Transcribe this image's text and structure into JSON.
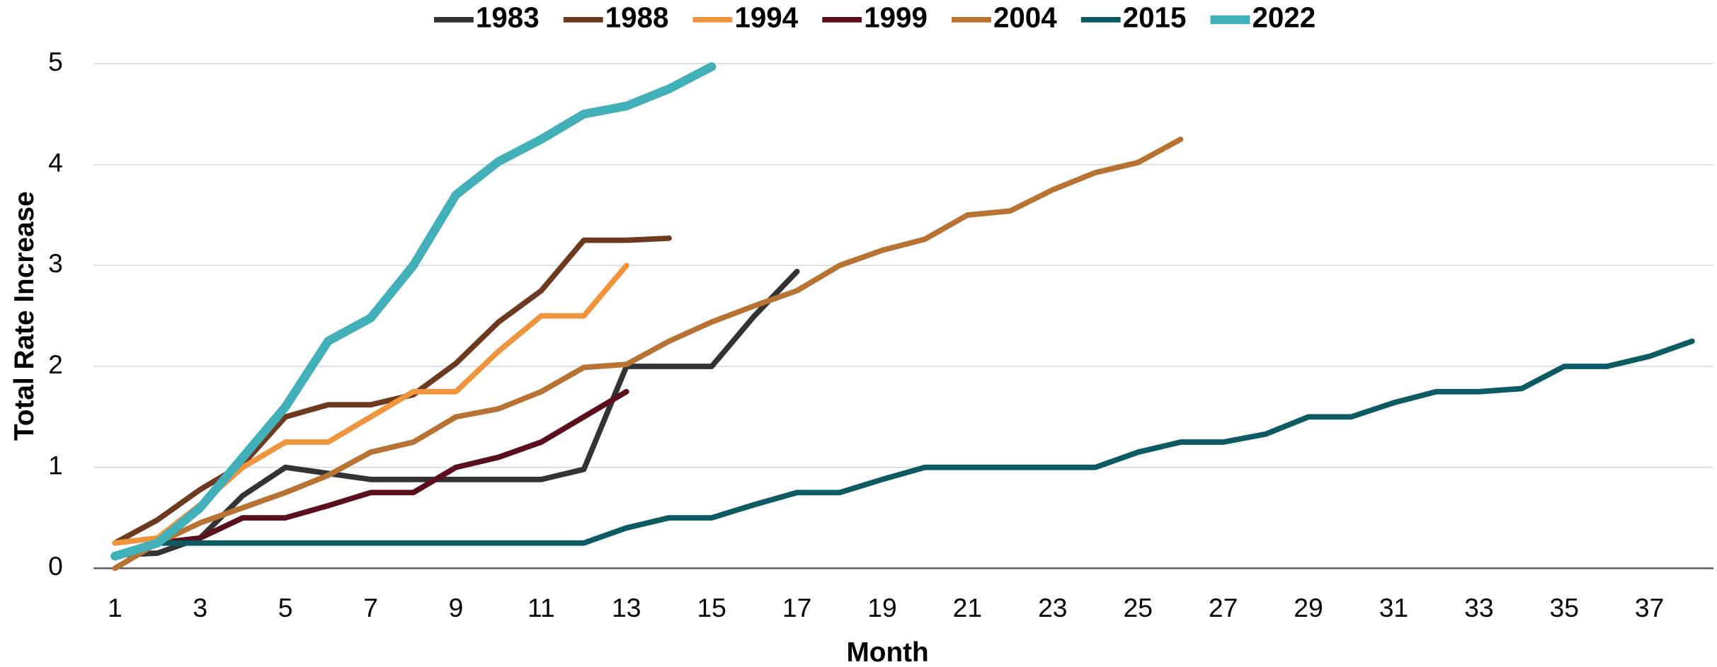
{
  "chart_data": {
    "type": "line",
    "x_label": "Month",
    "y_label": "Total Rate Increase",
    "x": [
      1,
      2,
      3,
      4,
      5,
      6,
      7,
      8,
      9,
      10,
      11,
      12,
      13,
      14,
      15,
      16,
      17,
      18,
      19,
      20,
      21,
      22,
      23,
      24,
      25,
      26,
      27,
      28,
      29,
      30,
      31,
      32,
      33,
      34,
      35,
      36,
      37,
      38
    ],
    "xlim": [
      0.5,
      38.5
    ],
    "xticks": [
      1,
      3,
      5,
      7,
      9,
      11,
      13,
      15,
      17,
      19,
      21,
      23,
      25,
      27,
      29,
      31,
      33,
      35,
      37
    ],
    "ylim": [
      0,
      5
    ],
    "yticks": [
      0,
      1,
      2,
      3,
      4,
      5
    ],
    "grid": true,
    "legend": "top",
    "series": [
      {
        "name": "1983",
        "color": "#333333",
        "line_width": 5,
        "values": [
          0.13,
          0.15,
          0.3,
          0.72,
          1.0,
          0.94,
          0.88,
          0.88,
          0.88,
          0.88,
          0.88,
          0.98,
          2.0,
          2.0,
          2.0,
          2.5,
          2.94,
          null,
          null,
          null,
          null,
          null,
          null,
          null,
          null,
          null,
          null,
          null,
          null,
          null,
          null,
          null,
          null,
          null,
          null,
          null,
          null,
          null
        ]
      },
      {
        "name": "1988",
        "color": "#6e3a1f",
        "line_width": 5,
        "values": [
          0.25,
          0.48,
          0.78,
          1.03,
          1.5,
          1.62,
          1.62,
          1.72,
          2.03,
          2.44,
          2.75,
          3.25,
          3.25,
          3.27,
          null,
          null,
          null,
          null,
          null,
          null,
          null,
          null,
          null,
          null,
          null,
          null,
          null,
          null,
          null,
          null,
          null,
          null,
          null,
          null,
          null,
          null,
          null,
          null
        ]
      },
      {
        "name": "1994",
        "color": "#f0943e",
        "line_width": 5,
        "values": [
          0.25,
          0.3,
          0.63,
          1.0,
          1.25,
          1.25,
          1.5,
          1.75,
          1.75,
          2.15,
          2.5,
          2.5,
          3.0,
          null,
          null,
          null,
          null,
          null,
          null,
          null,
          null,
          null,
          null,
          null,
          null,
          null,
          null,
          null,
          null,
          null,
          null,
          null,
          null,
          null,
          null,
          null,
          null,
          null
        ]
      },
      {
        "name": "1999",
        "color": "#5b0f1c",
        "line_width": 5,
        "values": [
          null,
          0.25,
          0.3,
          0.5,
          0.5,
          0.62,
          0.75,
          0.75,
          1.0,
          1.1,
          1.25,
          1.5,
          1.75,
          null,
          null,
          null,
          null,
          null,
          null,
          null,
          null,
          null,
          null,
          null,
          null,
          null,
          null,
          null,
          null,
          null,
          null,
          null,
          null,
          null,
          null,
          null,
          null,
          null
        ]
      },
      {
        "name": "2004",
        "color": "#b87333",
        "line_width": 5,
        "values": [
          0.0,
          0.25,
          0.45,
          0.6,
          0.75,
          0.92,
          1.15,
          1.25,
          1.5,
          1.58,
          1.75,
          1.99,
          2.02,
          2.25,
          2.44,
          2.6,
          2.75,
          3.0,
          3.15,
          3.26,
          3.5,
          3.54,
          3.75,
          3.92,
          4.02,
          4.25,
          null,
          null,
          null,
          null,
          null,
          null,
          null,
          null,
          null,
          null,
          null,
          null
        ]
      },
      {
        "name": "2015",
        "color": "#0c5b63",
        "line_width": 5,
        "values": [
          0.13,
          0.25,
          0.25,
          0.25,
          0.25,
          0.25,
          0.25,
          0.25,
          0.25,
          0.25,
          0.25,
          0.25,
          0.4,
          0.5,
          0.5,
          0.63,
          0.75,
          0.75,
          0.88,
          1.0,
          1.0,
          1.0,
          1.0,
          1.0,
          1.15,
          1.25,
          1.25,
          1.33,
          1.5,
          1.5,
          1.64,
          1.75,
          1.75,
          1.78,
          2.0,
          2.0,
          2.1,
          2.25
        ]
      },
      {
        "name": "2022",
        "color": "#41b0b8",
        "line_width": 8,
        "values": [
          0.12,
          0.25,
          0.6,
          1.1,
          1.6,
          2.25,
          2.48,
          3.0,
          3.7,
          4.03,
          4.25,
          4.5,
          4.58,
          4.75,
          4.97,
          null,
          null,
          null,
          null,
          null,
          null,
          null,
          null,
          null,
          null,
          null,
          null,
          null,
          null,
          null,
          null,
          null,
          null,
          null,
          null,
          null,
          null,
          null
        ]
      }
    ]
  }
}
